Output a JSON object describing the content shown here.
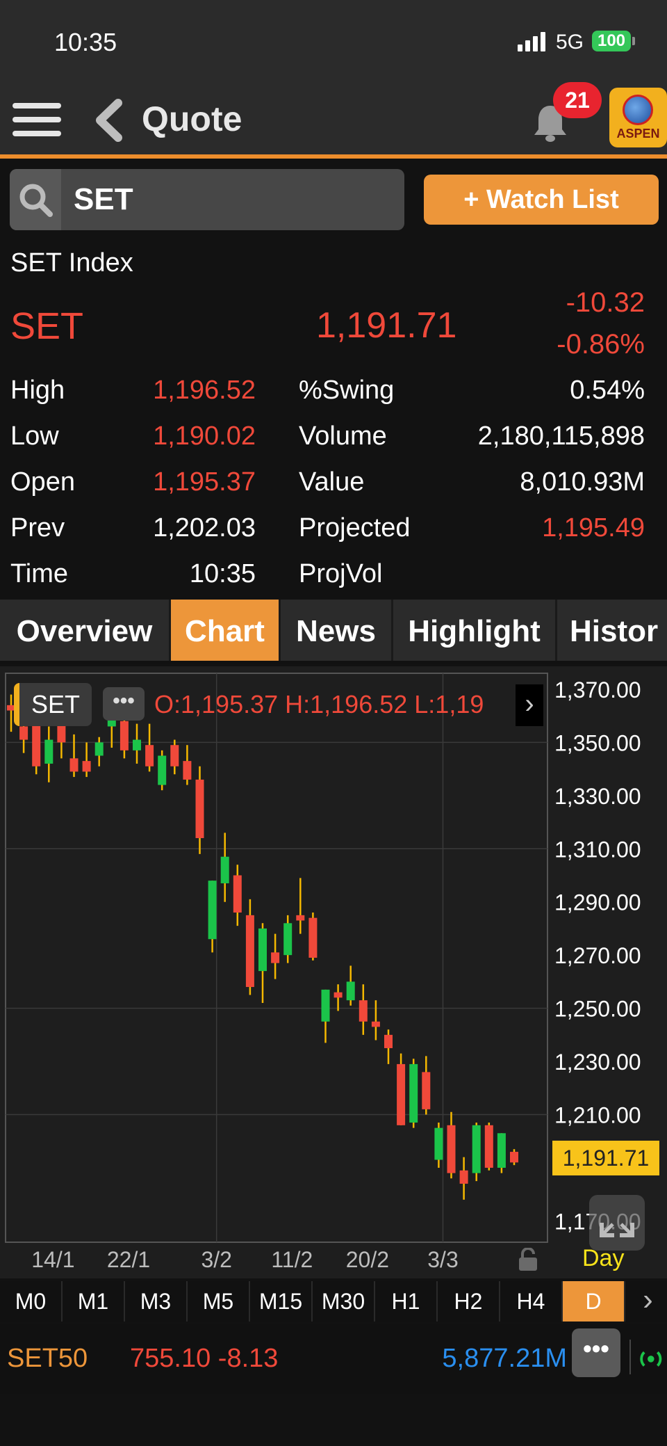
{
  "status_bar": {
    "time": "10:35",
    "network": "5G",
    "battery": "100"
  },
  "header": {
    "title": "Quote",
    "notification_count": "21",
    "logo_text": "ASPEN"
  },
  "search": {
    "value": "SET",
    "watch_label": "+ Watch List"
  },
  "quote": {
    "name": "SET Index",
    "symbol": "SET",
    "last": "1,191.71",
    "change": "-10.32",
    "pct_change": "-0.86%",
    "stats_left": [
      {
        "label": "High",
        "value": "1,196.52",
        "color": "red"
      },
      {
        "label": "Low",
        "value": "1,190.02",
        "color": "red"
      },
      {
        "label": "Open",
        "value": "1,195.37",
        "color": "red"
      },
      {
        "label": "Prev",
        "value": "1,202.03",
        "color": "white"
      },
      {
        "label": "Time",
        "value": "10:35",
        "color": "white"
      }
    ],
    "stats_right": [
      {
        "label": "%Swing",
        "value": "0.54%",
        "color": "white"
      },
      {
        "label": "Volume",
        "value": "2,180,115,898",
        "color": "white"
      },
      {
        "label": "Value",
        "value": "8,010.93M",
        "color": "white"
      },
      {
        "label": "Projected",
        "value": "1,195.49",
        "color": "red"
      },
      {
        "label": "ProjVol",
        "value": "",
        "color": "white"
      }
    ]
  },
  "tabs": [
    "Overview",
    "Chart",
    "News",
    "Highlight",
    "Histor"
  ],
  "active_tab": "Chart",
  "chart_header": {
    "symbol_chip": "SET",
    "more": "•••",
    "ohl_text": "O:1,195.37  H:1,196.52  L:1,19",
    "arrow": "›"
  },
  "chart_data": {
    "type": "candlestick",
    "ylim": [
      1160,
      1380
    ],
    "y_ticks": [
      "1,370.00",
      "1,350.00",
      "1,330.00",
      "1,310.00",
      "1,290.00",
      "1,270.00",
      "1,250.00",
      "1,230.00",
      "1,210.00",
      "1,170.00"
    ],
    "y_tick_values": [
      1370,
      1350,
      1330,
      1310,
      1290,
      1270,
      1250,
      1230,
      1210,
      1170
    ],
    "x_tick_labels": [
      "14/1",
      "22/1",
      "3/2",
      "11/2",
      "20/2",
      "3/3"
    ],
    "x_tick_index": [
      4,
      10,
      17,
      23,
      29,
      35
    ],
    "current_price": "1,191.71",
    "current_value": 1191.71,
    "period_label": "Day",
    "candles": [
      {
        "o": 1364,
        "h": 1368,
        "l": 1354,
        "c": 1362
      },
      {
        "o": 1356,
        "h": 1360,
        "l": 1346,
        "c": 1351
      },
      {
        "o": 1361,
        "h": 1366,
        "l": 1338,
        "c": 1341
      },
      {
        "o": 1342,
        "h": 1356,
        "l": 1335,
        "c": 1351
      },
      {
        "o": 1359,
        "h": 1365,
        "l": 1344,
        "c": 1350
      },
      {
        "o": 1344,
        "h": 1353,
        "l": 1337,
        "c": 1339
      },
      {
        "o": 1343,
        "h": 1350,
        "l": 1337,
        "c": 1339
      },
      {
        "o": 1345,
        "h": 1352,
        "l": 1341,
        "c": 1350
      },
      {
        "o": 1356,
        "h": 1364,
        "l": 1348,
        "c": 1362
      },
      {
        "o": 1358,
        "h": 1362,
        "l": 1344,
        "c": 1347
      },
      {
        "o": 1347,
        "h": 1357,
        "l": 1342,
        "c": 1351
      },
      {
        "o": 1349,
        "h": 1357,
        "l": 1339,
        "c": 1341
      },
      {
        "o": 1334,
        "h": 1347,
        "l": 1332,
        "c": 1345
      },
      {
        "o": 1349,
        "h": 1351,
        "l": 1338,
        "c": 1341
      },
      {
        "o": 1343,
        "h": 1349,
        "l": 1334,
        "c": 1336
      },
      {
        "o": 1336,
        "h": 1341,
        "l": 1308,
        "c": 1314
      },
      {
        "o": 1276,
        "h": 1298,
        "l": 1271,
        "c": 1298
      },
      {
        "o": 1297,
        "h": 1316,
        "l": 1290,
        "c": 1307
      },
      {
        "o": 1300,
        "h": 1304,
        "l": 1281,
        "c": 1286
      },
      {
        "o": 1285,
        "h": 1291,
        "l": 1255,
        "c": 1258
      },
      {
        "o": 1264,
        "h": 1282,
        "l": 1252,
        "c": 1280
      },
      {
        "o": 1271,
        "h": 1278,
        "l": 1261,
        "c": 1267
      },
      {
        "o": 1270,
        "h": 1285,
        "l": 1267,
        "c": 1282
      },
      {
        "o": 1285,
        "h": 1299,
        "l": 1278,
        "c": 1283
      },
      {
        "o": 1284,
        "h": 1286,
        "l": 1268,
        "c": 1269
      },
      {
        "o": 1245,
        "h": 1257,
        "l": 1237,
        "c": 1257
      },
      {
        "o": 1256,
        "h": 1259,
        "l": 1249,
        "c": 1254
      },
      {
        "o": 1253,
        "h": 1266,
        "l": 1251,
        "c": 1260
      },
      {
        "o": 1253,
        "h": 1259,
        "l": 1240,
        "c": 1245
      },
      {
        "o": 1245,
        "h": 1253,
        "l": 1238,
        "c": 1243
      },
      {
        "o": 1240,
        "h": 1242,
        "l": 1229,
        "c": 1235
      },
      {
        "o": 1229,
        "h": 1233,
        "l": 1206,
        "c": 1206
      },
      {
        "o": 1207,
        "h": 1231,
        "l": 1205,
        "c": 1229
      },
      {
        "o": 1226,
        "h": 1232,
        "l": 1210,
        "c": 1212
      },
      {
        "o": 1193,
        "h": 1207,
        "l": 1190,
        "c": 1205
      },
      {
        "o": 1206,
        "h": 1211,
        "l": 1186,
        "c": 1188
      },
      {
        "o": 1189,
        "h": 1194,
        "l": 1178,
        "c": 1184
      },
      {
        "o": 1188,
        "h": 1207,
        "l": 1185,
        "c": 1206
      },
      {
        "o": 1206,
        "h": 1207,
        "l": 1189,
        "c": 1190
      },
      {
        "o": 1190,
        "h": 1203,
        "l": 1188,
        "c": 1203
      },
      {
        "o": 1196,
        "h": 1197,
        "l": 1191,
        "c": 1192
      }
    ]
  },
  "timeframes": [
    "M0",
    "M1",
    "M3",
    "M5",
    "M15",
    "M30",
    "H1",
    "H2",
    "H4",
    "D"
  ],
  "active_timeframe": "D",
  "ticker": {
    "symbol": "SET50",
    "price_change": "755.10 -8.13",
    "value": "5,877.21M",
    "more": "•••"
  },
  "colors": {
    "up": "#1bc44a",
    "down": "#f0493a",
    "wick": "#f5b800",
    "accent": "#ed963a",
    "grid": "#3a3a3a"
  }
}
